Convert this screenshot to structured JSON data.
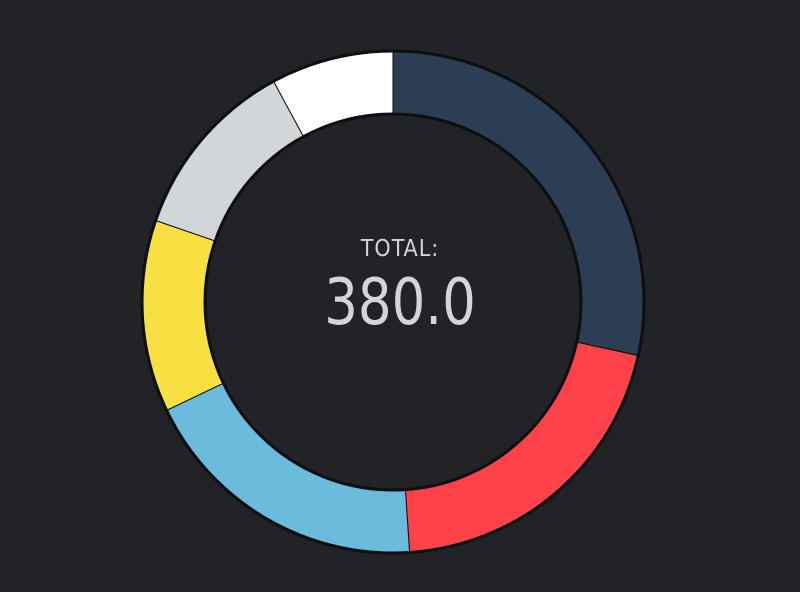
{
  "chart_data": {
    "type": "donut",
    "center_label": "TOTAL:",
    "center_value": "380.0",
    "total": 380.0,
    "slices": [
      {
        "value": 108.0,
        "color": "#2c3e53"
      },
      {
        "value": 78.0,
        "color": "#ff414a"
      },
      {
        "value": 72.0,
        "color": "#6bbbdc"
      },
      {
        "value": 47.0,
        "color": "#f8e042"
      },
      {
        "value": 45.0,
        "color": "#d3d6d8"
      },
      {
        "value": 30.0,
        "color": "#ffffff"
      }
    ],
    "background_color": "#222327",
    "outline_color": "#0d0e10",
    "text_color": "#d3d5d8"
  }
}
